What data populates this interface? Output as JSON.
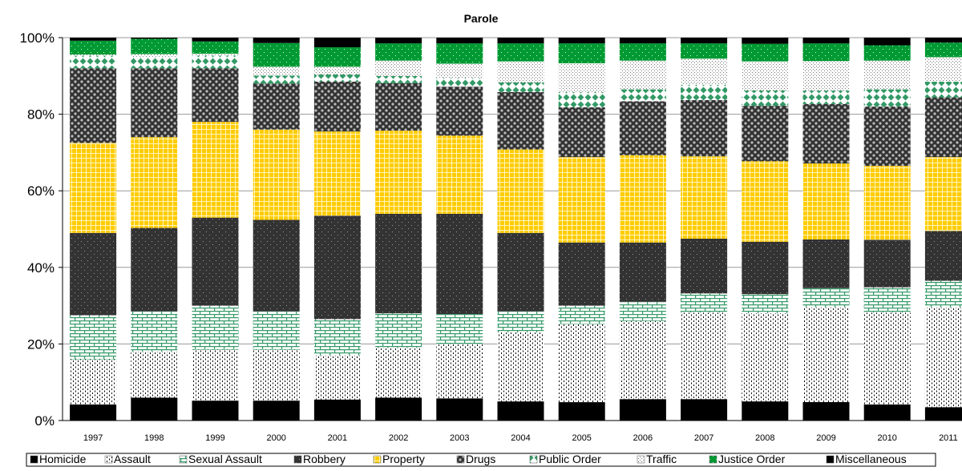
{
  "chart_data": {
    "type": "bar",
    "stacked": true,
    "title": "Parole",
    "xlabel": "",
    "ylabel": "",
    "ylim": [
      0,
      100
    ],
    "y_ticks": [
      "0%",
      "20%",
      "40%",
      "60%",
      "80%",
      "100%"
    ],
    "gridlines": true,
    "legend_position": "bottom",
    "categories": [
      "1997",
      "1998",
      "1999",
      "2000",
      "2001",
      "2002",
      "2003",
      "2004",
      "2005",
      "2006",
      "2007",
      "2008",
      "2009",
      "2010",
      "2011"
    ],
    "series": [
      {
        "name": "Homicide",
        "color": "#000000",
        "pattern": "solid",
        "values": [
          4.2,
          6.0,
          5.2,
          5.2,
          5.5,
          6.0,
          5.8,
          5.0,
          4.8,
          5.6,
          5.6,
          5.0,
          4.8,
          4.2,
          3.5
        ]
      },
      {
        "name": "Assault",
        "color": "#ffffff",
        "pattern": "dots",
        "values": [
          11.8,
          12.0,
          13.3,
          13.3,
          11.5,
          13.0,
          14.2,
          18.0,
          20.4,
          20.4,
          22.6,
          23.0,
          24.7,
          24.0,
          26.0
        ]
      },
      {
        "name": "Sexual Assault",
        "color": "#339966",
        "pattern": "brick",
        "values": [
          11.5,
          10.5,
          11.5,
          10.0,
          9.5,
          9.0,
          7.8,
          5.5,
          4.8,
          5.0,
          5.0,
          5.0,
          5.0,
          6.6,
          7.0
        ]
      },
      {
        "name": "Robbery",
        "color": "#333333",
        "pattern": "dots-on-dark",
        "values": [
          21.5,
          21.8,
          23.0,
          23.9,
          27.0,
          26.0,
          26.2,
          20.5,
          16.5,
          15.5,
          14.3,
          13.7,
          12.7,
          12.4,
          13.0
        ]
      },
      {
        "name": "Property",
        "color": "#ffcc00",
        "pattern": "grid",
        "values": [
          23.5,
          23.7,
          25.0,
          23.6,
          22.0,
          21.7,
          20.4,
          21.8,
          22.3,
          22.8,
          21.5,
          21.0,
          19.8,
          19.3,
          19.3
        ]
      },
      {
        "name": "Drugs",
        "color": "#333333",
        "pattern": "weave",
        "values": [
          19.5,
          18.0,
          14.0,
          12.0,
          13.0,
          12.4,
          12.8,
          15.0,
          13.0,
          14.1,
          14.7,
          14.5,
          15.5,
          15.5,
          15.6
        ]
      },
      {
        "name": "Public Order",
        "color": "#339966",
        "pattern": "diamonds",
        "values": [
          3.3,
          3.0,
          3.3,
          2.1,
          1.9,
          1.9,
          2.3,
          2.5,
          4.0,
          3.1,
          4.0,
          4.0,
          3.5,
          4.5,
          4.1
        ]
      },
      {
        "name": "Traffic",
        "color": "#ffffff",
        "pattern": "fine-dots",
        "values": [
          0.3,
          0.7,
          0.5,
          2.3,
          2.0,
          4.0,
          3.7,
          5.5,
          7.5,
          7.5,
          6.8,
          7.6,
          7.7,
          7.5,
          6.4
        ]
      },
      {
        "name": "Justice Order",
        "color": "#009933",
        "pattern": "green-dots",
        "values": [
          3.6,
          4.0,
          3.2,
          6.2,
          5.1,
          4.5,
          5.3,
          4.7,
          5.2,
          4.5,
          4.0,
          4.6,
          4.6,
          4.0,
          3.8
        ]
      },
      {
        "name": "Miscellaneous",
        "color": "#000000",
        "pattern": "solid",
        "values": [
          0.8,
          0.3,
          1.0,
          1.4,
          2.5,
          1.5,
          1.5,
          1.5,
          1.5,
          1.5,
          1.5,
          1.6,
          1.5,
          2.0,
          1.3
        ]
      }
    ]
  }
}
